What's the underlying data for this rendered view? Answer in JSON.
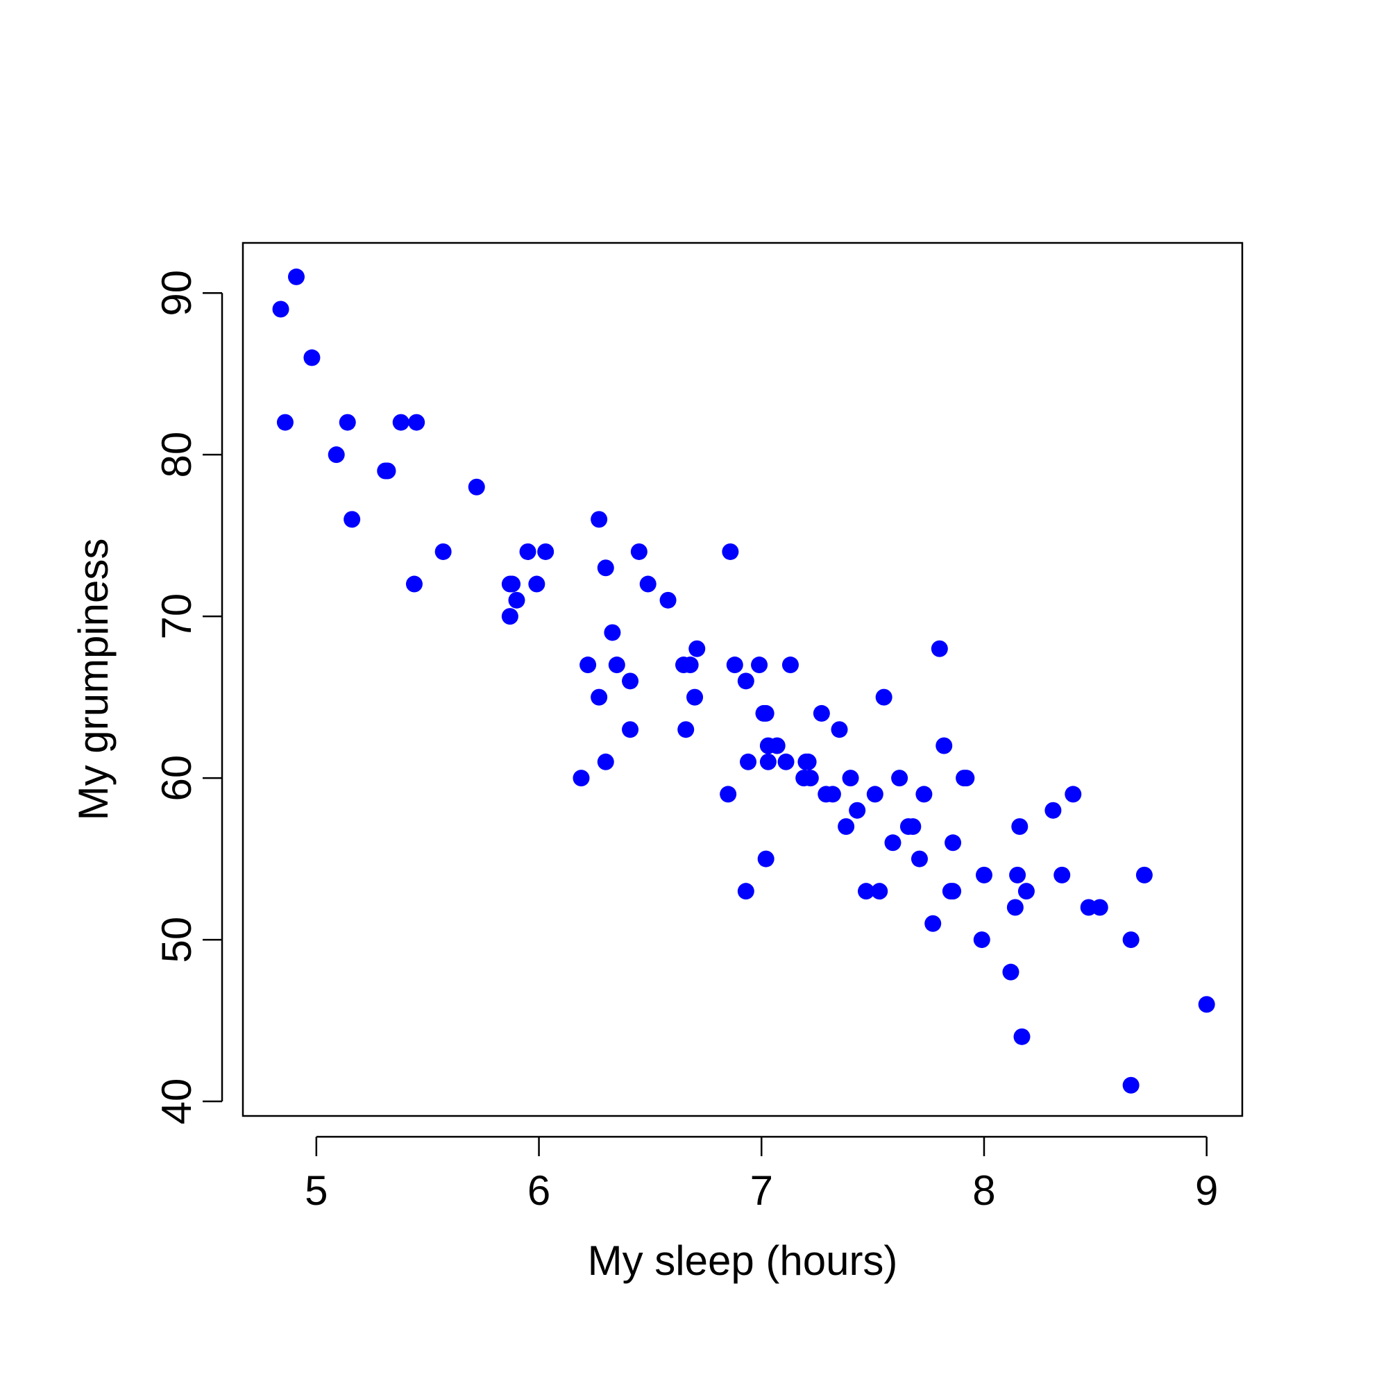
{
  "chart_data": {
    "type": "scatter",
    "title": "",
    "xlabel": "My sleep (hours)",
    "ylabel": "My grumpiness",
    "xlim": [
      4.67,
      9.16
    ],
    "ylim": [
      39.1,
      93.1
    ],
    "x_ticks": [
      "5",
      "6",
      "7",
      "8",
      "9"
    ],
    "y_ticks": [
      "40",
      "50",
      "60",
      "70",
      "80",
      "90"
    ],
    "grid": false,
    "legend": "none",
    "point_color": "#0000ff",
    "points": [
      {
        "x": 4.84,
        "y": 89
      },
      {
        "x": 4.91,
        "y": 91
      },
      {
        "x": 4.86,
        "y": 82
      },
      {
        "x": 4.98,
        "y": 86
      },
      {
        "x": 5.09,
        "y": 80
      },
      {
        "x": 5.14,
        "y": 82
      },
      {
        "x": 5.16,
        "y": 76
      },
      {
        "x": 5.31,
        "y": 79
      },
      {
        "x": 5.32,
        "y": 79
      },
      {
        "x": 5.38,
        "y": 82
      },
      {
        "x": 5.45,
        "y": 82
      },
      {
        "x": 5.44,
        "y": 72
      },
      {
        "x": 5.57,
        "y": 74
      },
      {
        "x": 5.72,
        "y": 78
      },
      {
        "x": 5.87,
        "y": 72
      },
      {
        "x": 5.88,
        "y": 72
      },
      {
        "x": 5.87,
        "y": 70
      },
      {
        "x": 5.9,
        "y": 71
      },
      {
        "x": 5.95,
        "y": 74
      },
      {
        "x": 5.99,
        "y": 72
      },
      {
        "x": 6.03,
        "y": 74
      },
      {
        "x": 6.19,
        "y": 60
      },
      {
        "x": 6.22,
        "y": 67
      },
      {
        "x": 6.27,
        "y": 76
      },
      {
        "x": 6.27,
        "y": 65
      },
      {
        "x": 6.3,
        "y": 73
      },
      {
        "x": 6.3,
        "y": 61
      },
      {
        "x": 6.33,
        "y": 69
      },
      {
        "x": 6.35,
        "y": 67
      },
      {
        "x": 6.41,
        "y": 66
      },
      {
        "x": 6.41,
        "y": 63
      },
      {
        "x": 6.45,
        "y": 74
      },
      {
        "x": 6.49,
        "y": 72
      },
      {
        "x": 6.58,
        "y": 71
      },
      {
        "x": 6.65,
        "y": 67
      },
      {
        "x": 6.68,
        "y": 67
      },
      {
        "x": 6.66,
        "y": 63
      },
      {
        "x": 6.7,
        "y": 65
      },
      {
        "x": 6.71,
        "y": 68
      },
      {
        "x": 6.85,
        "y": 59
      },
      {
        "x": 6.86,
        "y": 74
      },
      {
        "x": 6.88,
        "y": 67
      },
      {
        "x": 6.93,
        "y": 66
      },
      {
        "x": 6.94,
        "y": 61
      },
      {
        "x": 6.93,
        "y": 53
      },
      {
        "x": 6.99,
        "y": 67
      },
      {
        "x": 7.01,
        "y": 64
      },
      {
        "x": 7.02,
        "y": 64
      },
      {
        "x": 7.03,
        "y": 62
      },
      {
        "x": 7.03,
        "y": 61
      },
      {
        "x": 7.02,
        "y": 55
      },
      {
        "x": 7.07,
        "y": 62
      },
      {
        "x": 7.11,
        "y": 61
      },
      {
        "x": 7.13,
        "y": 67
      },
      {
        "x": 7.2,
        "y": 61
      },
      {
        "x": 7.21,
        "y": 61
      },
      {
        "x": 7.19,
        "y": 60
      },
      {
        "x": 7.22,
        "y": 60
      },
      {
        "x": 7.27,
        "y": 64
      },
      {
        "x": 7.29,
        "y": 59
      },
      {
        "x": 7.32,
        "y": 59
      },
      {
        "x": 7.35,
        "y": 63
      },
      {
        "x": 7.38,
        "y": 57
      },
      {
        "x": 7.4,
        "y": 60
      },
      {
        "x": 7.43,
        "y": 58
      },
      {
        "x": 7.47,
        "y": 53
      },
      {
        "x": 7.51,
        "y": 59
      },
      {
        "x": 7.53,
        "y": 53
      },
      {
        "x": 7.55,
        "y": 65
      },
      {
        "x": 7.59,
        "y": 56
      },
      {
        "x": 7.62,
        "y": 60
      },
      {
        "x": 7.66,
        "y": 57
      },
      {
        "x": 7.68,
        "y": 57
      },
      {
        "x": 7.71,
        "y": 55
      },
      {
        "x": 7.73,
        "y": 59
      },
      {
        "x": 7.77,
        "y": 51
      },
      {
        "x": 7.8,
        "y": 68
      },
      {
        "x": 7.82,
        "y": 62
      },
      {
        "x": 7.85,
        "y": 53
      },
      {
        "x": 7.86,
        "y": 56
      },
      {
        "x": 7.86,
        "y": 53
      },
      {
        "x": 7.91,
        "y": 60
      },
      {
        "x": 7.92,
        "y": 60
      },
      {
        "x": 7.99,
        "y": 50
      },
      {
        "x": 8.0,
        "y": 54
      },
      {
        "x": 8.12,
        "y": 48
      },
      {
        "x": 8.14,
        "y": 52
      },
      {
        "x": 8.15,
        "y": 54
      },
      {
        "x": 8.16,
        "y": 57
      },
      {
        "x": 8.17,
        "y": 44
      },
      {
        "x": 8.19,
        "y": 53
      },
      {
        "x": 8.31,
        "y": 58
      },
      {
        "x": 8.35,
        "y": 54
      },
      {
        "x": 8.4,
        "y": 59
      },
      {
        "x": 8.47,
        "y": 52
      },
      {
        "x": 8.52,
        "y": 52
      },
      {
        "x": 8.66,
        "y": 50
      },
      {
        "x": 8.66,
        "y": 41
      },
      {
        "x": 8.72,
        "y": 54
      },
      {
        "x": 9.0,
        "y": 46
      }
    ]
  }
}
